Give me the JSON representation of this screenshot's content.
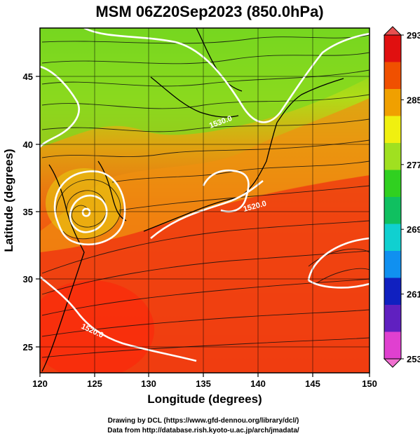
{
  "chart_data": {
    "type": "heatmap",
    "title": "MSM 06Z20Sep2023 (850.0hPa)",
    "xlabel": "Longitude (degrees)",
    "ylabel": "Latitude  (degrees)",
    "xlim": [
      120,
      150
    ],
    "ylim": [
      22.5,
      48
    ],
    "x_ticks": [
      120,
      125,
      130,
      135,
      140,
      145,
      150
    ],
    "x_tick_labels": [
      "120",
      "125",
      "130",
      "135",
      "140",
      "145",
      "150"
    ],
    "y_ticks": [
      25,
      30,
      35,
      40,
      45
    ],
    "y_tick_labels": [
      "25",
      "30",
      "35",
      "40",
      "45"
    ],
    "colorbar": {
      "range": [
        253,
        293
      ],
      "ticks": [
        253,
        261,
        269,
        277,
        285,
        293
      ],
      "tick_labels": [
        "253",
        "261",
        "269",
        "277",
        "285",
        "293"
      ],
      "colors": [
        "#e040d0",
        "#6020c0",
        "#1020c0",
        "#1090f0",
        "#10d0d0",
        "#10c060",
        "#30d020",
        "#a0e020",
        "#f0f010",
        "#f0a000",
        "#f05000",
        "#e01010"
      ]
    },
    "contour_labels": [
      {
        "text": "1530.0",
        "lon": 137.5,
        "lat": 41.5
      },
      {
        "text": "1520.0",
        "lon": 139.5,
        "lat": 34.4
      },
      {
        "text": "1520.0",
        "lon": 127.0,
        "lat": 26.0
      }
    ],
    "grid": true,
    "overlays": [
      "temperature shading",
      "streamlines",
      "geopotential height contours",
      "coastlines"
    ]
  },
  "credits": {
    "line1": "Drawing by DCL (https://www.gfd-dennou.org/library/dcl/)",
    "line2": "Data from http://database.rish.kyoto-u.ac.jp/arch/jmadata/"
  }
}
